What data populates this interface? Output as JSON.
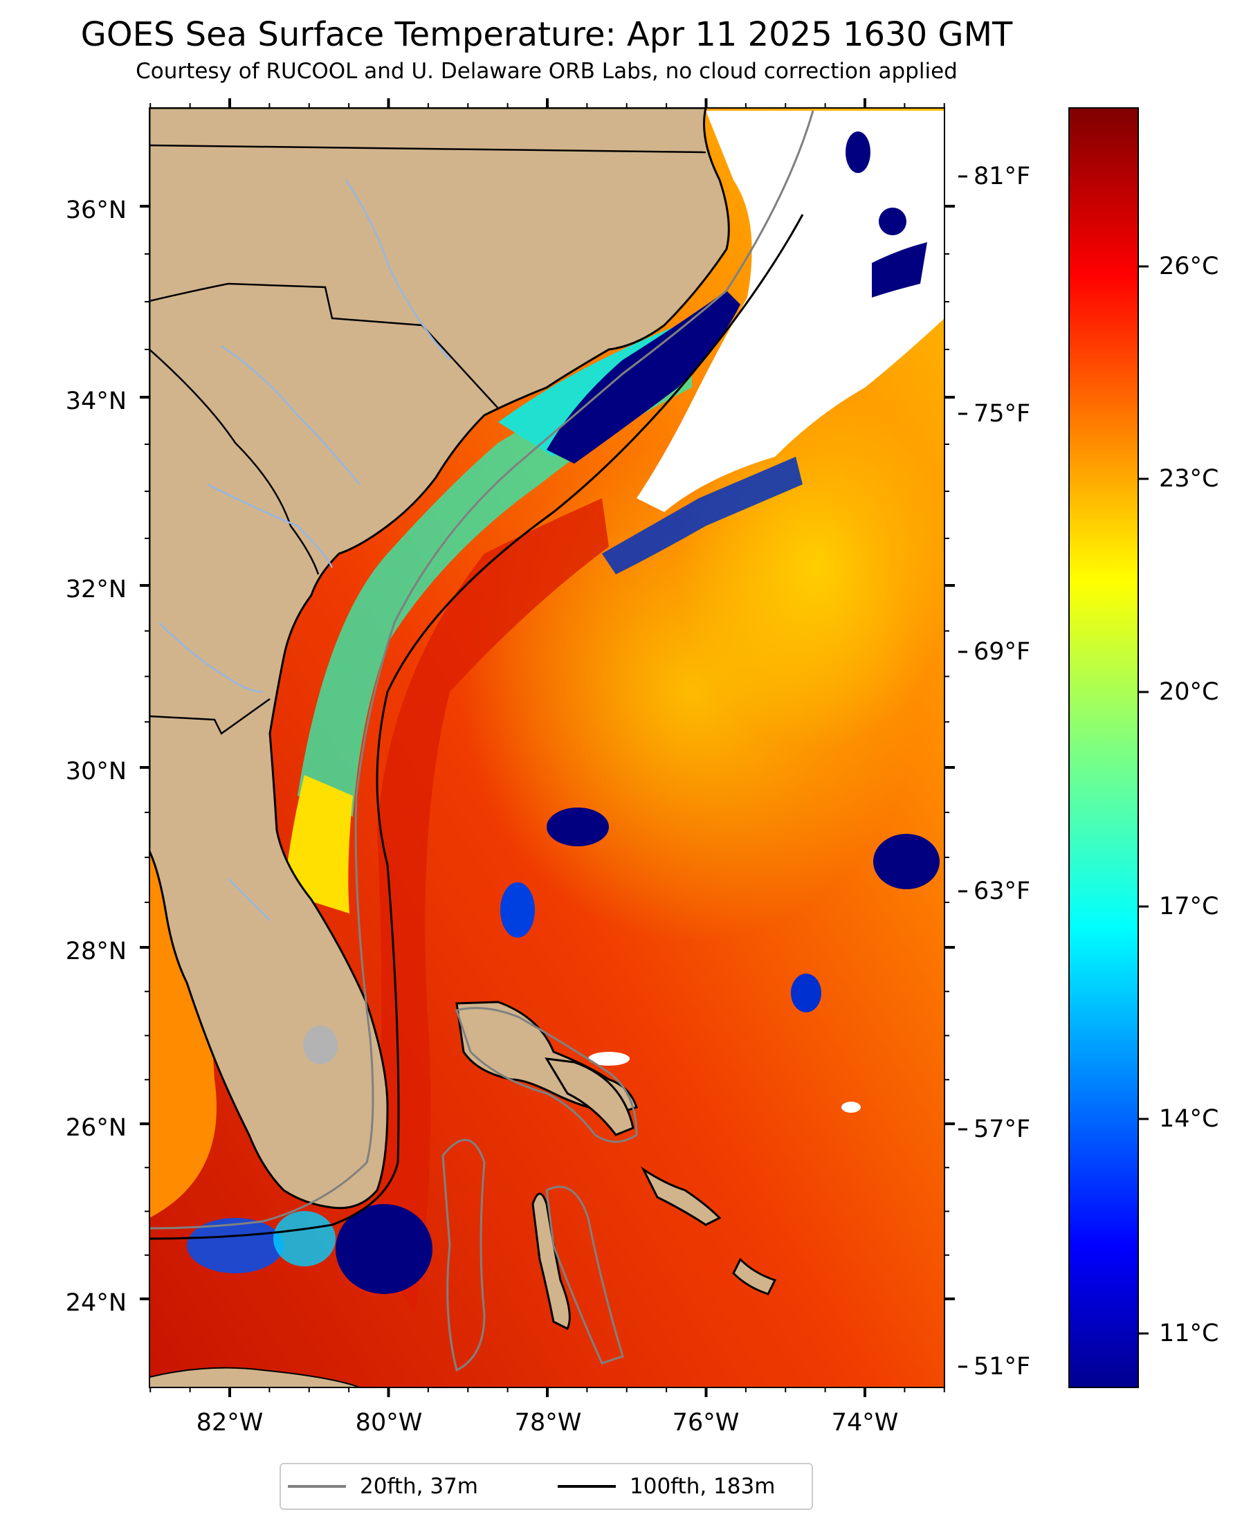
{
  "title": "GOES Sea Surface Temperature: Apr 11 2025 1630 GMT",
  "subtitle": "Courtesy of RUCOOL and U. Delaware ORB Labs, no cloud correction applied",
  "map": {
    "lon_ticks": [
      "82°W",
      "80°W",
      "78°W",
      "76°W",
      "74°W"
    ],
    "lat_ticks": [
      "36°N",
      "34°N",
      "32°N",
      "30°N",
      "28°N",
      "26°N",
      "24°N"
    ],
    "fahrenheit_ticks": [
      "81°F",
      "75°F",
      "69°F",
      "63°F",
      "57°F",
      "51°F"
    ],
    "colors": {
      "land": "#d1b48c",
      "cloud": "#ffffff",
      "coastline": "#000000",
      "rivers": "#97b6e1",
      "lake": "#b3b3b3"
    }
  },
  "colorbar": {
    "colormap": "jet",
    "celsius_ticks": [
      "26°C",
      "23°C",
      "20°C",
      "17°C",
      "14°C",
      "11°C"
    ]
  },
  "legend": [
    {
      "label": "20fth, 37m",
      "color": "#808080"
    },
    {
      "label": "100fth, 183m",
      "color": "#000000"
    }
  ]
}
